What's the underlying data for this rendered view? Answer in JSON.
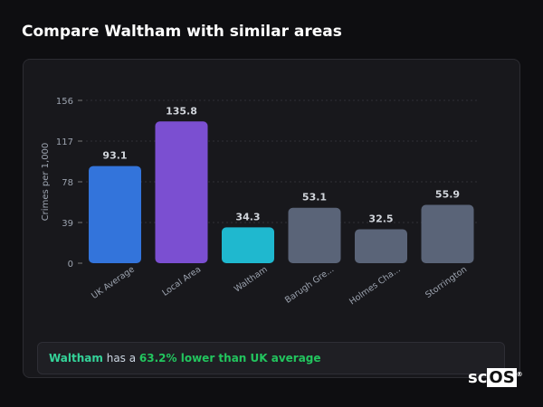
{
  "title": "Compare Waltham with similar areas",
  "chart_data": {
    "type": "bar",
    "ylabel": "Crimes per 1,000",
    "ylim": [
      0,
      156
    ],
    "yticks": [
      0,
      39,
      78,
      117,
      156
    ],
    "grid": true,
    "categories": [
      "UK Average",
      "Local Area",
      "Waltham",
      "Barugh Gre...",
      "Holmes Cha...",
      "Storrington"
    ],
    "values": [
      93.1,
      135.8,
      34.3,
      53.1,
      32.5,
      55.9
    ],
    "data_labels": [
      "93.1",
      "135.8",
      "34.3",
      "53.1",
      "32.5",
      "55.9"
    ],
    "colors": [
      "#3374db",
      "#7b4fd1",
      "#1fb8cf",
      "#5a6478",
      "#5a6478",
      "#5a6478"
    ]
  },
  "summary": {
    "area": "Waltham",
    "middle": " has a ",
    "comparison": "63.2% lower than UK average"
  },
  "logo": {
    "text_sc": "sc",
    "text_os": "OS",
    "mark": "®"
  }
}
